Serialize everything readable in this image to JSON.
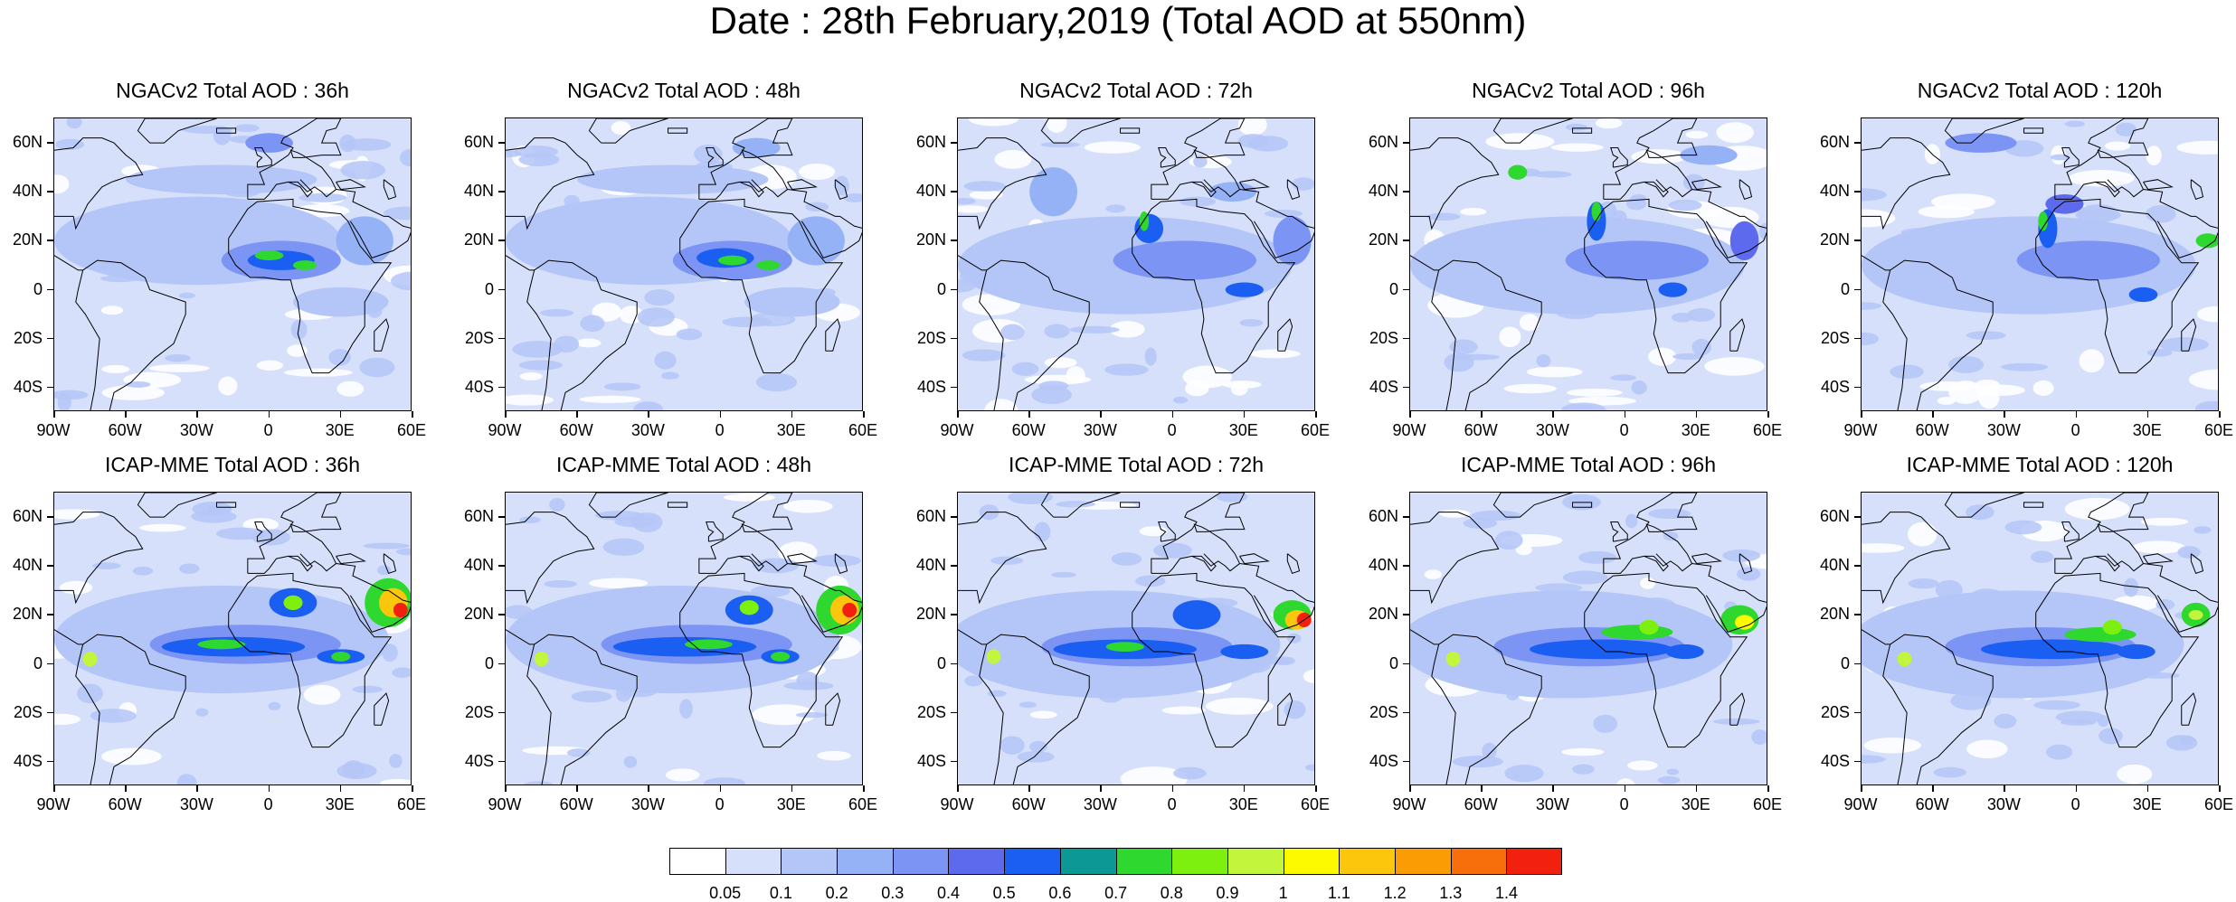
{
  "title": "Date : 28th February,2019 (Total AOD at 550nm)",
  "panels": [
    {
      "title": "NGACv2 Total AOD : 36h"
    },
    {
      "title": "NGACv2 Total AOD : 48h"
    },
    {
      "title": "NGACv2 Total AOD : 72h"
    },
    {
      "title": "NGACv2 Total AOD : 96h"
    },
    {
      "title": "NGACv2 Total AOD : 120h"
    },
    {
      "title": "ICAP-MME Total AOD : 36h"
    },
    {
      "title": "ICAP-MME Total AOD : 48h"
    },
    {
      "title": "ICAP-MME Total AOD : 72h"
    },
    {
      "title": "ICAP-MME Total AOD : 96h"
    },
    {
      "title": "ICAP-MME Total AOD : 120h"
    }
  ],
  "lat_ticks": [
    "60N",
    "40N",
    "20N",
    "0",
    "20S",
    "40S"
  ],
  "lon_ticks": [
    "90W",
    "60W",
    "30W",
    "0",
    "30E",
    "60E"
  ],
  "colorbar": {
    "labels": [
      "0.05",
      "0.1",
      "0.2",
      "0.3",
      "0.4",
      "0.5",
      "0.6",
      "0.7",
      "0.8",
      "0.9",
      "1",
      "1.1",
      "1.2",
      "1.3",
      "1.4"
    ],
    "colors": [
      "#ffffff",
      "#d6e0fb",
      "#b4c6f7",
      "#95b2f7",
      "#7c94f3",
      "#5d6aee",
      "#1a5ef2",
      "#0c9996",
      "#2fd82f",
      "#7ef00f",
      "#c3f53c",
      "#fdfa00",
      "#fcc60d",
      "#fb9c05",
      "#f76f0a",
      "#f2200e"
    ]
  }
}
